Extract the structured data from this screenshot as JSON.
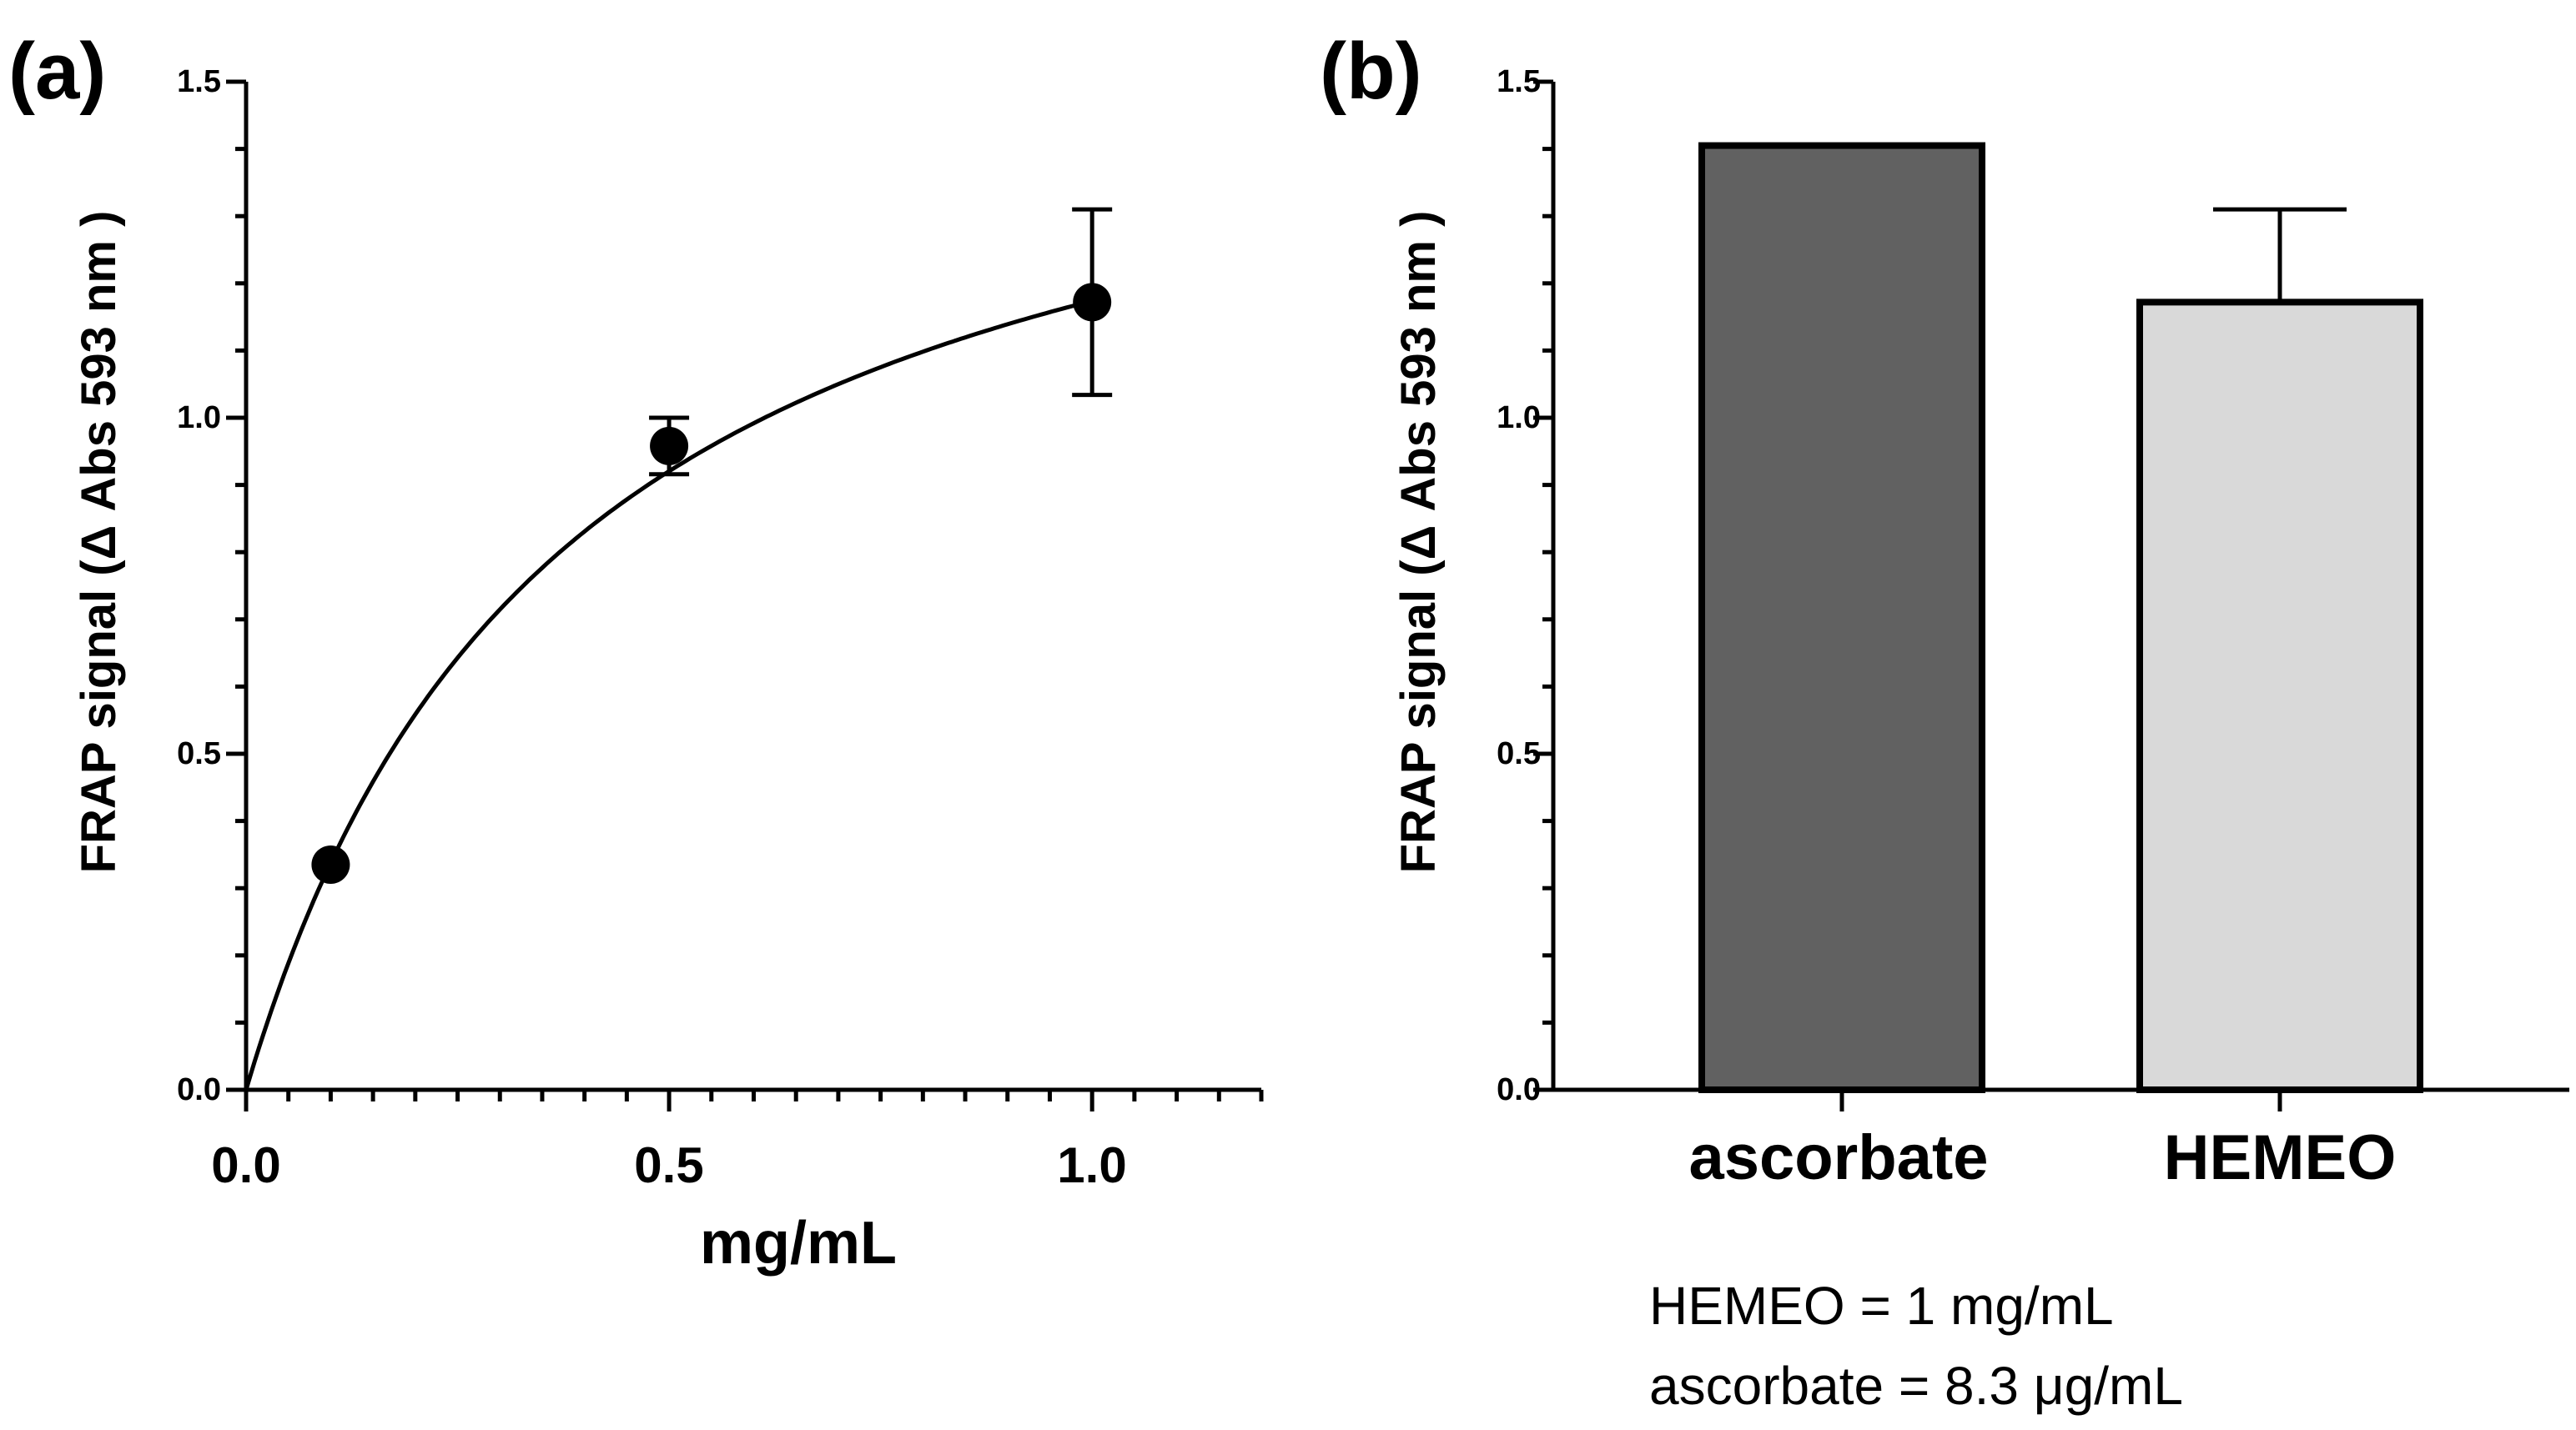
{
  "chart_data": [
    {
      "panel": "(a)",
      "type": "scatter",
      "xlabel": "mg/mL",
      "ylabel": "FRAP signal (Δ Abs 593 nm )",
      "xlim": [
        0,
        1.2
      ],
      "ylim": [
        0,
        1.5
      ],
      "xticks": [
        "0.0",
        "0.5",
        "1.0"
      ],
      "yticks": [
        "0.0",
        "0.5",
        "1.0",
        "1.5"
      ],
      "series": [
        {
          "name": "HEMEO",
          "x": [
            0.1,
            0.5,
            1.0
          ],
          "y": [
            0.335,
            0.958,
            1.172
          ],
          "yerr": [
            0,
            0.042,
            0.138
          ]
        }
      ],
      "fit": {
        "type": "saturation",
        "vmax": 1.62,
        "k": 0.38
      }
    },
    {
      "panel": "(b)",
      "type": "bar",
      "ylabel": "FRAP signal (Δ Abs 593 nm )",
      "ylim": [
        0,
        1.5
      ],
      "yticks": [
        "0.0",
        "0.5",
        "1.0",
        "1.5"
      ],
      "categories": [
        "ascorbate",
        "HEMEO"
      ],
      "values": [
        1.405,
        1.172
      ],
      "errors": [
        0,
        0.138
      ],
      "colors": [
        "#616161",
        "#d9d9d9"
      ],
      "notes": [
        "HEMEO = 1 mg/mL",
        "ascorbate = 8.3 μg/mL"
      ]
    }
  ]
}
